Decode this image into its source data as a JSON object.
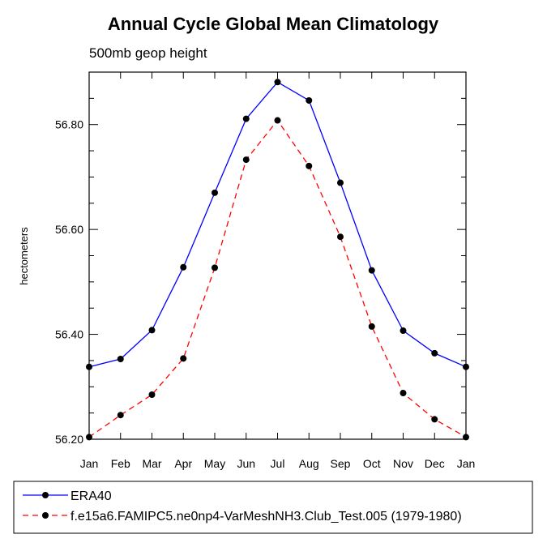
{
  "chart_data": {
    "type": "line",
    "title": "Annual Cycle Global Mean Climatology",
    "subtitle": "500mb geop height",
    "xlabel": "",
    "ylabel": "hectometers",
    "categories": [
      "Jan",
      "Feb",
      "Mar",
      "Apr",
      "May",
      "Jun",
      "Jul",
      "Aug",
      "Sep",
      "Oct",
      "Nov",
      "Dec",
      "Jan"
    ],
    "ylim": [
      56.2,
      56.9
    ],
    "yticks": [
      56.2,
      56.4,
      56.6,
      56.8
    ],
    "ytick_labels": [
      "56.20",
      "56.40",
      "56.60",
      "56.80"
    ],
    "grid": false,
    "legend_position": "bottom",
    "series": [
      {
        "name": "ERA40",
        "color": "#0000ff",
        "dash": "solid",
        "marker": "circle",
        "values": [
          56.338,
          56.353,
          56.408,
          56.528,
          56.67,
          56.811,
          56.881,
          56.846,
          56.689,
          56.522,
          56.407,
          56.364,
          56.338
        ]
      },
      {
        "name": "f.e15a6.FAMIPC5.ne0np4-VarMeshNH3.Club_Test.005 (1979-1980)",
        "color": "#ff0000",
        "dash": "dashed",
        "marker": "circle",
        "values": [
          56.204,
          56.246,
          56.285,
          56.354,
          56.527,
          56.733,
          56.808,
          56.721,
          56.586,
          56.415,
          56.288,
          56.238,
          56.204
        ]
      }
    ]
  }
}
